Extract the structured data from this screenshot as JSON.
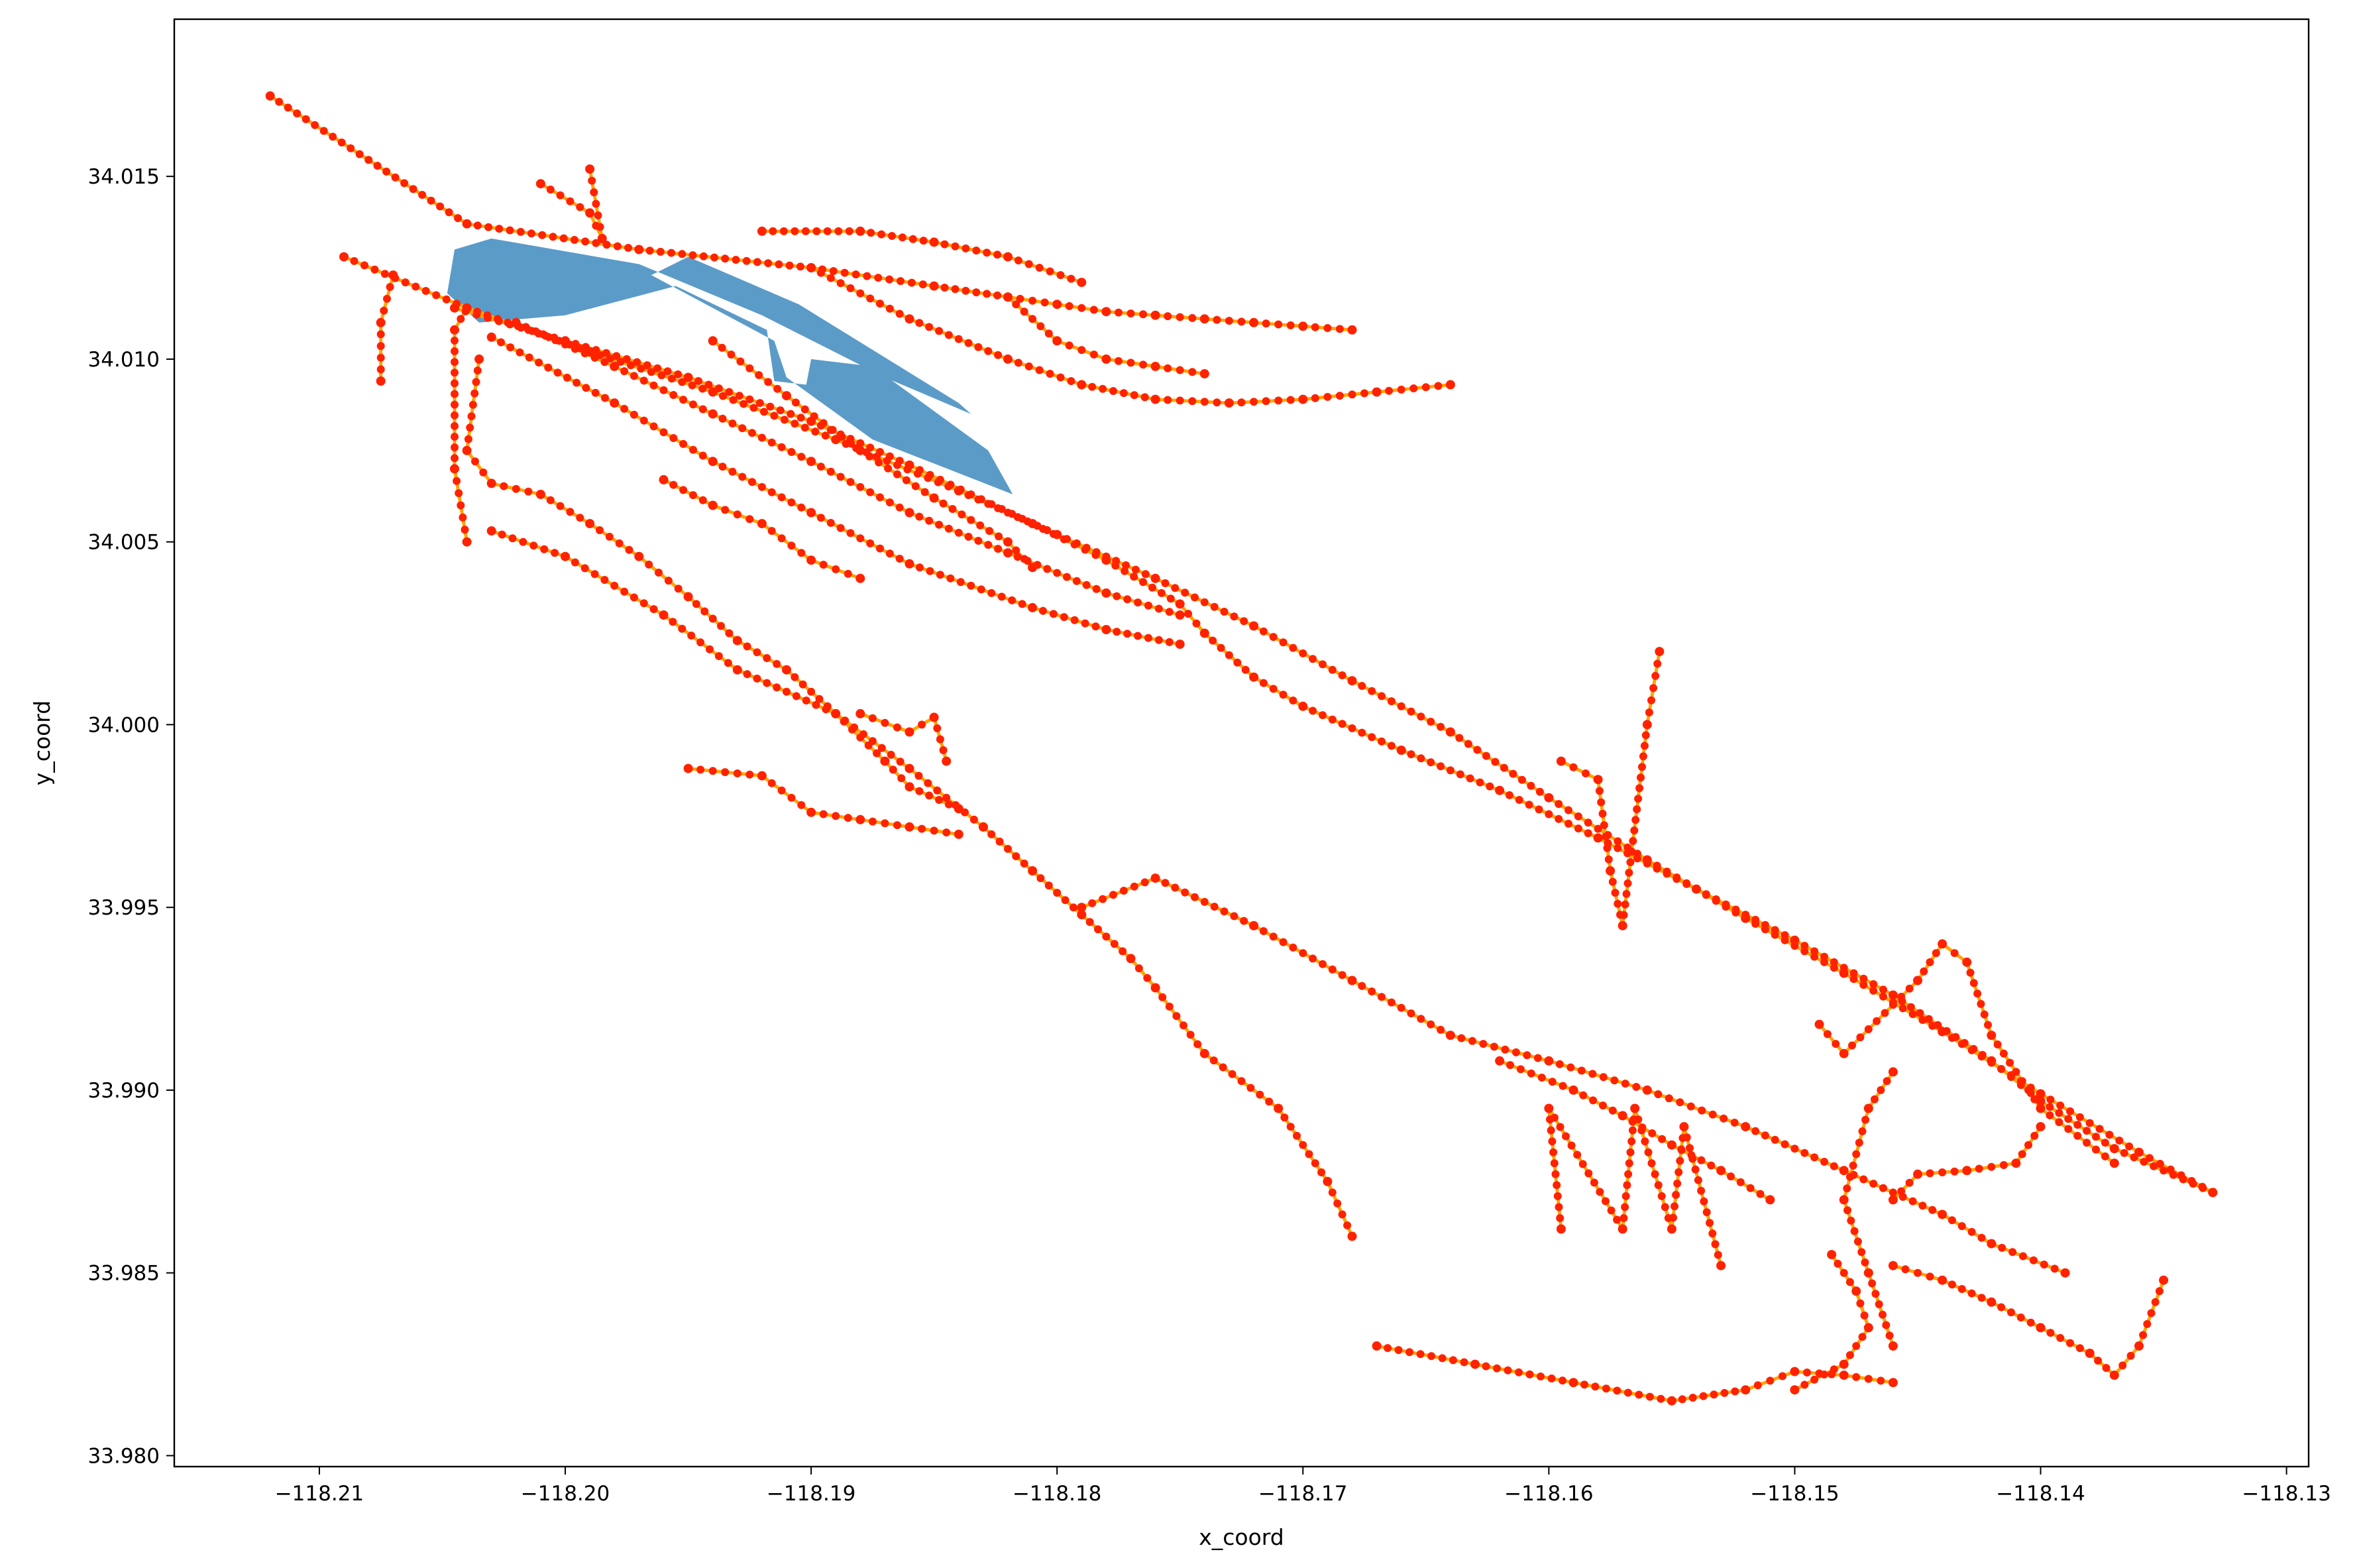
{
  "chart_data": {
    "type": "scatter",
    "title": "",
    "xlabel": "x_coord",
    "ylabel": "y_coord",
    "xlim": [
      -118.2159,
      -118.1291
    ],
    "ylim": [
      33.9797,
      34.0193
    ],
    "xticks": [
      -118.21,
      -118.2,
      -118.19,
      -118.18,
      -118.17,
      -118.16,
      -118.15,
      -118.14,
      -118.13
    ],
    "xtick_labels": [
      "−118.21",
      "−118.20",
      "−118.19",
      "−118.18",
      "−118.17",
      "−118.16",
      "−118.15",
      "−118.14",
      "−118.13"
    ],
    "yticks": [
      33.98,
      33.985,
      33.99,
      33.995,
      34.0,
      34.005,
      34.01,
      34.015
    ],
    "ytick_labels": [
      "33.980",
      "33.985",
      "33.990",
      "33.995",
      "34.000",
      "34.005",
      "34.010",
      "34.015"
    ],
    "grid": false,
    "colors": {
      "node": "#ff2200",
      "edge": "#ffa500",
      "polygon": "#5b9bc8"
    },
    "polygon": {
      "name": "area",
      "points": [
        [
          -118.2045,
          34.013
        ],
        [
          -118.203,
          34.0133
        ],
        [
          -118.197,
          34.0126
        ],
        [
          -118.192,
          34.0112
        ],
        [
          -118.187,
          34.0095
        ],
        [
          -118.1835,
          34.0085
        ],
        [
          -118.184,
          34.0088
        ],
        [
          -118.1905,
          34.0115
        ],
        [
          -118.195,
          34.0128
        ],
        [
          -118.1965,
          34.0123
        ],
        [
          -118.1915,
          34.0105
        ],
        [
          -118.191,
          34.0095
        ],
        [
          -118.1875,
          34.0078
        ],
        [
          -118.1818,
          34.0063
        ],
        [
          -118.1828,
          34.0075
        ],
        [
          -118.1875,
          34.0098
        ],
        [
          -118.19,
          34.01
        ],
        [
          -118.1902,
          34.0093
        ],
        [
          -118.1915,
          34.0094
        ],
        [
          -118.1918,
          34.0108
        ],
        [
          -118.1955,
          34.012
        ],
        [
          -118.2,
          34.0112
        ],
        [
          -118.2035,
          34.011
        ],
        [
          -118.2048,
          34.0118
        ]
      ]
    },
    "series": [
      {
        "name": "edges",
        "type": "line",
        "x": [
          -118.212,
          -118.204,
          -118.197,
          -118.19,
          -118.185,
          -118.182,
          -118.18,
          -118.178,
          -118.176,
          -118.174,
          -118.172,
          -118.17,
          -118.168
        ],
        "y": [
          34.0172,
          34.0137,
          34.013,
          34.0125,
          34.012,
          34.0117,
          34.0115,
          34.0113,
          34.0112,
          34.0111,
          34.011,
          34.0109,
          34.0108
        ]
      },
      {
        "name": "edges",
        "type": "line",
        "x": [
          -118.209,
          -118.204,
          -118.199,
          -118.194,
          -118.189,
          -118.184,
          -118.18,
          -118.176,
          -118.172,
          -118.168,
          -118.164,
          -118.16,
          -118.156,
          -118.152,
          -118.148,
          -118.144,
          -118.14,
          -118.136,
          -118.133
        ],
        "y": [
          34.0128,
          34.0114,
          34.0102,
          34.0091,
          34.0078,
          34.0064,
          34.0052,
          34.004,
          34.0027,
          34.0012,
          33.9998,
          33.998,
          33.9963,
          33.9947,
          33.9932,
          33.9916,
          33.9899,
          33.9883,
          33.9872
        ]
      },
      {
        "name": "edges",
        "type": "line",
        "x": [
          -118.2045,
          -118.2,
          -118.195,
          -118.19,
          -118.186,
          -118.181,
          -118.178,
          -118.175,
          -118.174,
          -118.172,
          -118.17,
          -118.166,
          -118.162,
          -118.158,
          -118.154,
          -118.15,
          -118.146,
          -118.142,
          -118.14,
          -118.137,
          -118.133
        ],
        "y": [
          34.0114,
          34.0105,
          34.0095,
          34.0083,
          34.0071,
          34.0055,
          34.0045,
          34.0033,
          34.0025,
          34.0013,
          34.0005,
          33.9993,
          33.9982,
          33.9969,
          33.9955,
          33.9941,
          33.9926,
          33.9908,
          33.9897,
          33.9884,
          33.9872
        ]
      },
      {
        "name": "edges",
        "type": "line",
        "x": [
          -118.19,
          -118.186,
          -118.182,
          -118.179,
          -118.176,
          -118.173,
          -118.17,
          -118.167,
          -118.164
        ],
        "y": [
          34.0125,
          34.0111,
          34.01,
          34.0093,
          34.0089,
          34.0088,
          34.0089,
          34.0091,
          34.0093
        ]
      },
      {
        "name": "edges",
        "type": "line",
        "x": [
          -118.203,
          -118.198,
          -118.194,
          -118.19,
          -118.186,
          -118.181,
          -118.178,
          -118.175
        ],
        "y": [
          34.0106,
          34.0088,
          34.0072,
          34.0058,
          34.0044,
          34.0032,
          34.0026,
          34.0022
        ]
      },
      {
        "name": "edges",
        "type": "line",
        "x": [
          -118.204,
          -118.2045,
          -118.2045,
          -118.204
        ],
        "y": [
          34.0114,
          34.0108,
          34.007,
          34.005
        ]
      },
      {
        "name": "edges",
        "type": "line",
        "x": [
          -118.2035,
          -118.204,
          -118.203,
          -118.201,
          -118.199,
          -118.197,
          -118.195,
          -118.193,
          -118.191,
          -118.189,
          -118.187,
          -118.186,
          -118.184
        ],
        "y": [
          34.01,
          34.0075,
          34.0066,
          34.0063,
          34.0055,
          34.0046,
          34.0035,
          34.0023,
          34.0015,
          34.0003,
          33.999,
          33.9983,
          33.9977
        ]
      },
      {
        "name": "edges",
        "type": "line",
        "x": [
          -118.203,
          -118.2,
          -118.196,
          -118.193,
          -118.189,
          -118.186,
          -118.183
        ],
        "y": [
          34.0053,
          34.0046,
          34.003,
          34.0015,
          34.0003,
          33.9988,
          33.9972
        ]
      },
      {
        "name": "edges",
        "type": "line",
        "x": [
          -118.183,
          -118.181,
          -118.179,
          -118.177,
          -118.176,
          -118.174,
          -118.171,
          -118.169,
          -118.168
        ],
        "y": [
          33.9972,
          33.996,
          33.9948,
          33.9936,
          33.9928,
          33.991,
          33.9895,
          33.9875,
          33.986
        ]
      },
      {
        "name": "edges",
        "type": "line",
        "x": [
          -118.179,
          -118.176,
          -118.172,
          -118.168,
          -118.164,
          -118.16,
          -118.156,
          -118.152,
          -118.148,
          -118.144,
          -118.142,
          -118.139
        ],
        "y": [
          33.995,
          33.9958,
          33.9945,
          33.993,
          33.9915,
          33.9908,
          33.99,
          33.989,
          33.9878,
          33.9866,
          33.9858,
          33.985
        ]
      },
      {
        "name": "edges",
        "type": "line",
        "x": [
          -118.146,
          -118.147,
          -118.148,
          -118.147,
          -118.146
        ],
        "y": [
          33.9905,
          33.9895,
          33.987,
          33.985,
          33.983
        ]
      },
      {
        "name": "edges",
        "type": "line",
        "x": [
          -118.167,
          -118.163,
          -118.159,
          -118.155,
          -118.152,
          -118.15,
          -118.148,
          -118.146
        ],
        "y": [
          33.983,
          33.9825,
          33.982,
          33.9815,
          33.9818,
          33.9823,
          33.9822,
          33.982
        ]
      },
      {
        "name": "edges",
        "type": "line",
        "x": [
          -118.1485,
          -118.1475,
          -118.147,
          -118.148,
          -118.15
        ],
        "y": [
          33.9855,
          33.9845,
          33.9835,
          33.9825,
          33.9818
        ]
      },
      {
        "name": "edges",
        "type": "line",
        "x": [
          -118.146,
          -118.145,
          -118.143,
          -118.141,
          -118.14
        ],
        "y": [
          33.987,
          33.9877,
          33.9878,
          33.988,
          33.989
        ]
      },
      {
        "name": "edges",
        "type": "line",
        "x": [
          -118.146,
          -118.144,
          -118.142,
          -118.14,
          -118.138,
          -118.137,
          -118.136,
          -118.135
        ],
        "y": [
          33.9852,
          33.9848,
          33.9842,
          33.9835,
          33.9828,
          33.9822,
          33.983,
          33.9848
        ]
      },
      {
        "name": "edges",
        "type": "line",
        "x": [
          -118.1595,
          -118.158,
          -118.1575,
          -118.157,
          -118.156,
          -118.1555
        ],
        "y": [
          33.999,
          33.9985,
          33.996,
          33.9945,
          34.0,
          34.002
        ]
      },
      {
        "name": "edges",
        "type": "line",
        "x": [
          -118.149,
          -118.148,
          -118.145,
          -118.144,
          -118.143,
          -118.142,
          -118.14,
          -118.137
        ],
        "y": [
          33.9918,
          33.991,
          33.993,
          33.994,
          33.9935,
          33.9915,
          33.9895,
          33.988
        ]
      },
      {
        "name": "edges",
        "type": "line",
        "x": [
          -118.162,
          -118.159,
          -118.157,
          -118.155,
          -118.153,
          -118.151
        ],
        "y": [
          33.9908,
          33.99,
          33.9893,
          33.9885,
          33.9878,
          33.987
        ]
      },
      {
        "name": "edges",
        "type": "line",
        "x": [
          -118.1595,
          -118.16,
          -118.157,
          -118.1565,
          -118.155,
          -118.1545,
          -118.153
        ],
        "y": [
          33.9862,
          33.9895,
          33.9862,
          33.9895,
          33.9862,
          33.989,
          33.9852
        ]
      },
      {
        "name": "edges",
        "type": "line",
        "x": [
          -118.194,
          -118.191,
          -118.188,
          -118.185,
          -118.182,
          -118.181
        ],
        "y": [
          34.0105,
          34.009,
          34.0075,
          34.0062,
          34.005,
          34.0043
        ]
      },
      {
        "name": "edges",
        "type": "line",
        "x": [
          -118.202,
          -118.198,
          -118.194,
          -118.19,
          -118.186,
          -118.182,
          -118.178,
          -118.175
        ],
        "y": [
          34.011,
          34.0098,
          34.0085,
          34.0072,
          34.0058,
          34.0047,
          34.0036,
          34.003
        ]
      },
      {
        "name": "edges",
        "type": "line",
        "x": [
          -118.196,
          -118.194,
          -118.192,
          -118.19,
          -118.188
        ],
        "y": [
          34.0067,
          34.006,
          34.0055,
          34.0045,
          34.004
        ]
      },
      {
        "name": "edges",
        "type": "line",
        "x": [
          -118.195,
          -118.192,
          -118.19,
          -118.188,
          -118.186,
          -118.184
        ],
        "y": [
          33.9988,
          33.9986,
          33.9976,
          33.9974,
          33.9972,
          33.997
        ]
      },
      {
        "name": "edges",
        "type": "line",
        "x": [
          -118.188,
          -118.186,
          -118.185,
          -118.1845
        ],
        "y": [
          34.0003,
          33.9998,
          34.0002,
          33.999
        ]
      },
      {
        "name": "edges",
        "type": "line",
        "x": [
          -118.207,
          -118.2075,
          -118.2075
        ],
        "y": [
          34.0123,
          34.011,
          34.0094
        ]
      },
      {
        "name": "edges",
        "type": "line",
        "x": [
          -118.201,
          -118.199,
          -118.1985,
          -118.199
        ],
        "y": [
          34.0148,
          34.014,
          34.0133,
          34.0152
        ]
      },
      {
        "name": "edges",
        "type": "line",
        "x": [
          -118.192,
          -118.188,
          -118.185,
          -118.182,
          -118.179
        ],
        "y": [
          34.0135,
          34.0135,
          34.0132,
          34.0128,
          34.0121
        ]
      },
      {
        "name": "edges",
        "type": "line",
        "x": [
          -118.182,
          -118.18,
          -118.178,
          -118.176,
          -118.174
        ],
        "y": [
          34.0117,
          34.0105,
          34.01,
          34.0098,
          34.0096
        ]
      }
    ]
  }
}
